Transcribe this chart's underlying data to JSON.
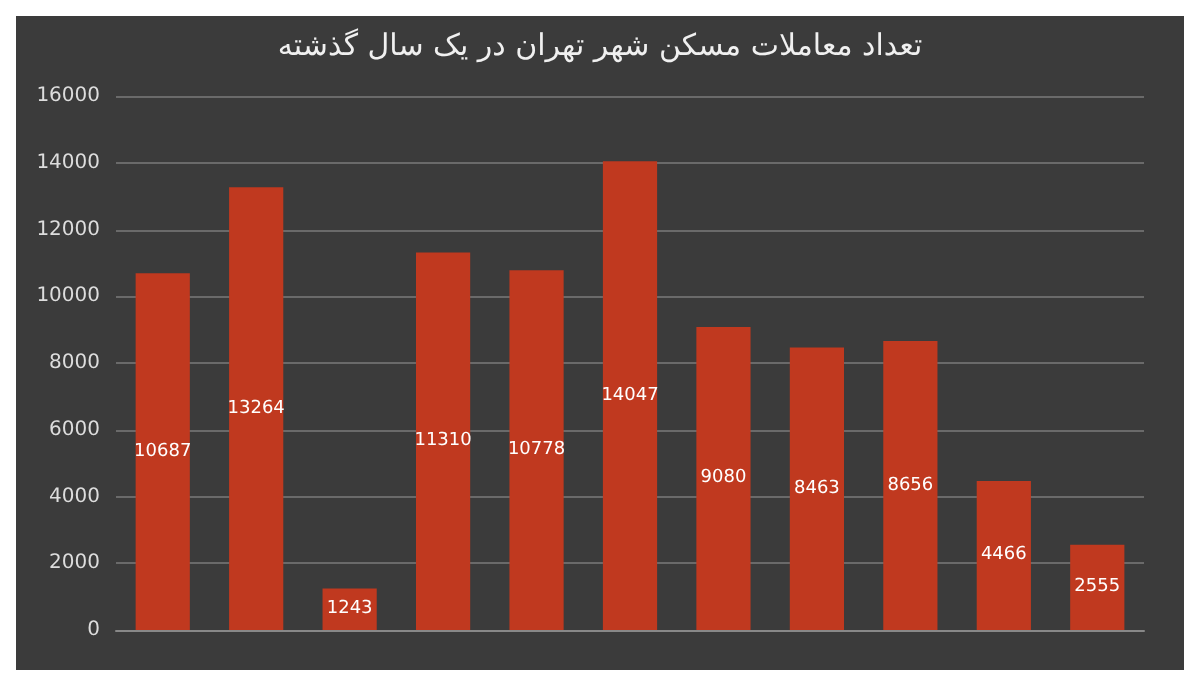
{
  "chart_data": {
    "type": "bar",
    "title": "تعداد معاملات مسکن شهر تهران در یک سال گذشته",
    "categories": [
      null,
      null,
      null,
      null,
      null,
      null,
      null,
      null,
      null,
      null,
      null
    ],
    "values": [
      10687,
      13264,
      1243,
      11310,
      10778,
      14047,
      9080,
      8463,
      8656,
      4466,
      2555
    ],
    "color": "#c0391f",
    "ylim": [
      0,
      16000
    ],
    "yticks": [
      0,
      2000,
      4000,
      6000,
      8000,
      10000,
      12000,
      14000,
      16000
    ],
    "grid": "y",
    "data_labels": true
  }
}
